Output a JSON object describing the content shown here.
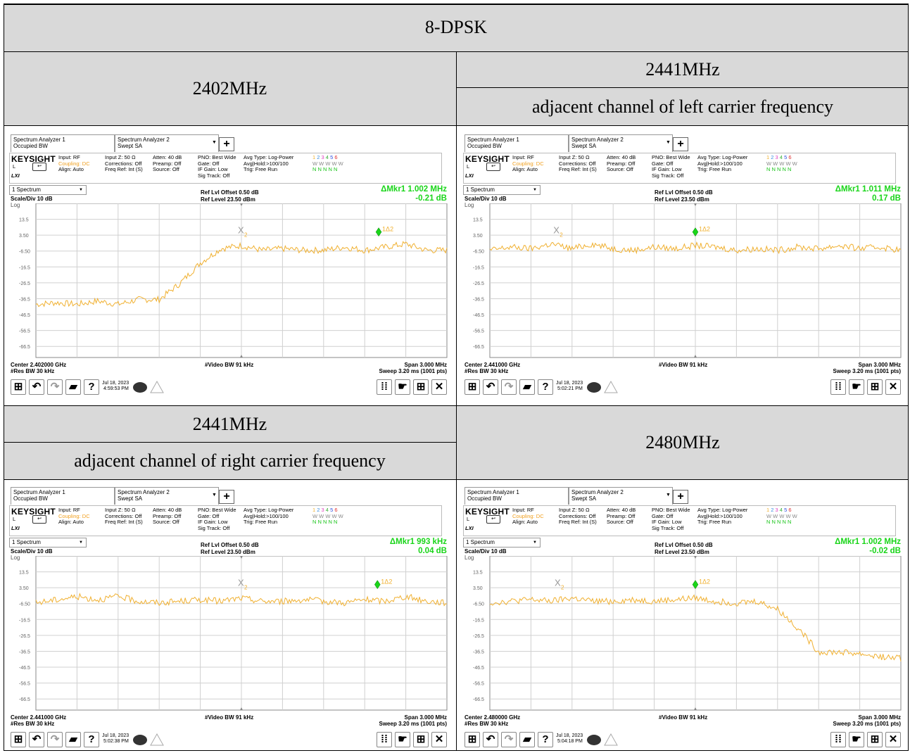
{
  "title": "8-DPSK",
  "headers": {
    "top_left": "2402MHz",
    "top_right_main": "2441MHz",
    "top_right_sub": "adjacent channel of left carrier frequency",
    "bottom_left_main": "2441MHz",
    "bottom_left_sub": "adjacent channel of right carrier frequency",
    "bottom_right": "2480MHz"
  },
  "screen": {
    "tab1_line1": "Spectrum Analyzer 1",
    "tab1_line2": "Occupied BW",
    "tab2_line1": "Spectrum Analyzer 2",
    "tab2_line2": "Swept SA",
    "plus": "+",
    "brand": "KEYSIGHT",
    "input": "Input: RF",
    "coupling": "Coupling: DC",
    "align": "Align: Auto",
    "mode_l": "L",
    "lxi": "LXI",
    "inputz": "Input Z: 50 Ω",
    "corrections": "Corrections: Off",
    "freqref": "Freq Ref: Int (S)",
    "atten": "Atten: 40 dB",
    "preamp": "Preamp: Off",
    "source": "Source: Off",
    "pno": "PNO: Best Wide",
    "gate": "Gate: Off",
    "ifgain": "IF Gain: Low",
    "sigtrack": "Sig Track: Off",
    "avgtype": "Avg Type: Log-Power",
    "avghold": "Avg|Hold:>100/100",
    "trig": "Trig: Free Run",
    "trace_nums": [
      "1",
      "2",
      "3",
      "4",
      "5",
      "6"
    ],
    "trace_w": "W W W W W",
    "trace_n": "N N N N N",
    "trace_dropdown": "1 Spectrum",
    "scale": "Scale/Div 10 dB",
    "log": "Log",
    "ref_offset": "Ref Lvl Offset 0.50 dB",
    "ref_level": "Ref Level 23.50 dBm",
    "yticks": [
      "13.5",
      "3.50",
      "-6.50",
      "-16.5",
      "-26.5",
      "-36.5",
      "-46.5",
      "-56.5",
      "-66.5"
    ],
    "video_bw": "#Video BW 91 kHz",
    "res_bw": "#Res BW 30 kHz",
    "span": "Span 3.000 MHz",
    "sweep": "Sweep 3.20 ms (1001 pts)",
    "marker_label": "1Δ2",
    "marker2_label": "X",
    "marker2_sub": "2",
    "help": "?"
  },
  "panels": [
    {
      "mkr_freq": "ΔMkr1  1.002 MHz",
      "mkr_level": "-0.21 dB",
      "center": "Center 2.402000 GHz",
      "date": "Jul 18, 2023",
      "time": "4:59:53 PM"
    },
    {
      "mkr_freq": "ΔMkr1  1.011 MHz",
      "mkr_level": "0.17 dB",
      "center": "Center 2.441000 GHz",
      "date": "Jul 18, 2023",
      "time": "5:02:21 PM"
    },
    {
      "mkr_freq": "ΔMkr1  993 kHz",
      "mkr_level": "0.04 dB",
      "center": "Center 2.441000 GHz",
      "date": "Jul 18, 2023",
      "time": "5:02:38 PM"
    },
    {
      "mkr_freq": "ΔMkr1  1.002 MHz",
      "mkr_level": "-0.02 dB",
      "center": "Center 2.480000 GHz",
      "date": "Jul 18, 2023",
      "time": "5:04:18 PM"
    }
  ],
  "chart_data": [
    {
      "type": "line",
      "title": "2402MHz",
      "x": [
        -1.5,
        -1.35,
        -1.2,
        -1.05,
        -0.9,
        -0.75,
        -0.6,
        -0.45,
        -0.3,
        -0.15,
        0,
        0.15,
        0.3,
        0.45,
        0.6,
        0.75,
        0.9,
        1.05,
        1.2,
        1.35,
        1.5
      ],
      "series": [
        {
          "values": [
            -40,
            -39,
            -40,
            -38,
            -40,
            -37,
            -37,
            -27,
            -14,
            -5,
            -3,
            -6,
            -5,
            -6,
            -6,
            -4,
            -6,
            -4,
            -2,
            -6,
            -6
          ]
        }
      ],
      "ylim": [
        -73.5,
        23.5
      ],
      "xlim": [
        -1.5,
        1.5
      ],
      "markers": [
        {
          "label": "1Δ2",
          "x": 1.002,
          "y": 5.5
        },
        {
          "label": "X2",
          "x": 0.0,
          "y": 5.5
        }
      ],
      "color": "#f0b030"
    },
    {
      "type": "line",
      "title": "2441MHz",
      "x": [
        -1.5,
        -1.35,
        -1.2,
        -1.05,
        -0.9,
        -0.75,
        -0.6,
        -0.45,
        -0.3,
        -0.15,
        0,
        0.15,
        0.3,
        0.45,
        0.6,
        0.75,
        0.9,
        1.05,
        1.2,
        1.35,
        1.5
      ],
      "series": [
        {
          "values": [
            -6,
            -4,
            -5,
            -2,
            -5,
            -2,
            -5,
            -6,
            -4,
            -5,
            -3,
            -4,
            -6,
            -5,
            -6,
            -4,
            -5,
            -3,
            -5,
            -4,
            -6
          ]
        }
      ],
      "ylim": [
        -73.5,
        23.5
      ],
      "xlim": [
        -1.5,
        1.5
      ],
      "markers": [
        {
          "label": "1Δ2",
          "x": 0.0,
          "y": 5.5
        },
        {
          "label": "X2",
          "x": -1.011,
          "y": 5.5
        }
      ],
      "color": "#f0b030"
    },
    {
      "type": "line",
      "title": "2441MHz",
      "x": [
        -1.5,
        -1.35,
        -1.2,
        -1.05,
        -0.9,
        -0.75,
        -0.6,
        -0.45,
        -0.3,
        -0.15,
        0,
        0.15,
        0.3,
        0.45,
        0.6,
        0.75,
        0.9,
        1.05,
        1.2,
        1.35,
        1.5
      ],
      "series": [
        {
          "values": [
            -6,
            -4,
            -2,
            -4,
            -2,
            -5,
            -6,
            -5,
            -4,
            -5,
            -3,
            -5,
            -5,
            -4,
            -5,
            -6,
            -4,
            -5,
            -2,
            -5,
            -6
          ]
        }
      ],
      "ylim": [
        -73.5,
        23.5
      ],
      "xlim": [
        -1.5,
        1.5
      ],
      "markers": [
        {
          "label": "1Δ2",
          "x": 0.993,
          "y": 5.5
        },
        {
          "label": "X2",
          "x": 0.0,
          "y": 5.5
        }
      ],
      "color": "#f0b030"
    },
    {
      "type": "line",
      "title": "2480MHz",
      "x": [
        -1.5,
        -1.35,
        -1.2,
        -1.05,
        -0.9,
        -0.75,
        -0.6,
        -0.45,
        -0.3,
        -0.15,
        0,
        0.15,
        0.3,
        0.45,
        0.6,
        0.75,
        0.9,
        1.05,
        1.2,
        1.35,
        1.5
      ],
      "series": [
        {
          "values": [
            -6,
            -5,
            -4,
            -5,
            -3,
            -5,
            -5,
            -4,
            -5,
            -4,
            -3,
            -5,
            -6,
            -5,
            -10,
            -22,
            -37,
            -37,
            -38,
            -40,
            -41
          ]
        }
      ],
      "ylim": [
        -73.5,
        23.5
      ],
      "xlim": [
        -1.5,
        1.5
      ],
      "markers": [
        {
          "label": "1Δ2",
          "x": 0.0,
          "y": 5.5
        },
        {
          "label": "X2",
          "x": -1.002,
          "y": 5.5
        }
      ],
      "color": "#f0b030"
    }
  ]
}
